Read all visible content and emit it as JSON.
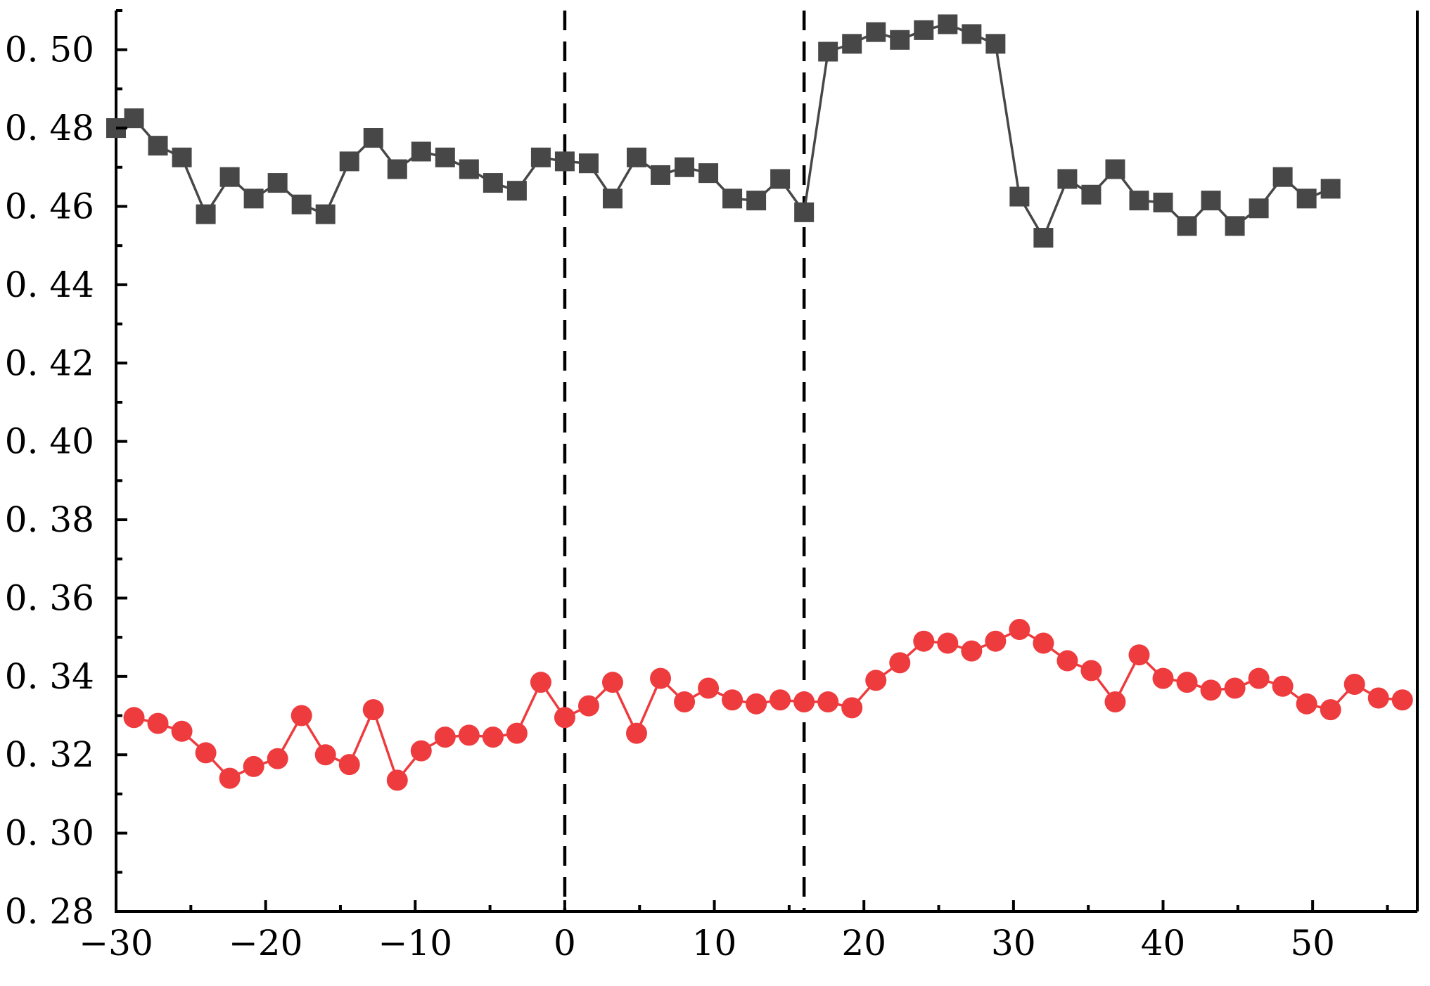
{
  "chart_data": {
    "type": "line",
    "title": "",
    "xlabel": "",
    "ylabel": "",
    "xlim": [
      -30,
      57
    ],
    "ylim": [
      0.28,
      0.51
    ],
    "x_ticks": [
      -30,
      -20,
      -10,
      0,
      10,
      20,
      30,
      40,
      50
    ],
    "x_tick_labels": [
      "−30",
      "−20",
      "−10",
      "0",
      "10",
      "20",
      "30",
      "40",
      "50"
    ],
    "y_ticks": [
      0.28,
      0.3,
      0.32,
      0.34,
      0.36,
      0.38,
      0.4,
      0.42,
      0.44,
      0.46,
      0.48,
      0.5
    ],
    "y_tick_labels": [
      "0. 28",
      "0. 30",
      "0. 32",
      "0. 34",
      "0. 36",
      "0. 38",
      "0. 40",
      "0. 42",
      "0. 44",
      "0. 46",
      "0. 48",
      "0. 50"
    ],
    "grid": false,
    "legend": false,
    "vertical_reference_lines": [
      0,
      16
    ],
    "series": [
      {
        "marker": "square",
        "color": "#474747",
        "x": [
          -30,
          -28.8,
          -27.2,
          -25.6,
          -24,
          -22.4,
          -20.8,
          -19.2,
          -17.6,
          -16,
          -14.4,
          -12.8,
          -11.2,
          -9.6,
          -8,
          -6.4,
          -4.8,
          -3.2,
          -1.6,
          0,
          1.6,
          3.2,
          4.8,
          6.4,
          8,
          9.6,
          11.2,
          12.8,
          14.4,
          16,
          17.6,
          19.2,
          20.8,
          22.4,
          24,
          25.6,
          27.2,
          28.8,
          30.4,
          32,
          33.6,
          35.2,
          36.8,
          38.4,
          40,
          41.6,
          43.2,
          44.8,
          46.4,
          48,
          49.6,
          51.2
        ],
        "values": [
          0.48,
          0.4825,
          0.4755,
          0.4725,
          0.458,
          0.4675,
          0.462,
          0.466,
          0.4605,
          0.458,
          0.4715,
          0.4775,
          0.4695,
          0.474,
          0.4725,
          0.4695,
          0.466,
          0.464,
          0.4725,
          0.4715,
          0.471,
          0.462,
          0.4725,
          0.468,
          0.47,
          0.4685,
          0.462,
          0.4615,
          0.467,
          0.4585,
          0.4995,
          0.5015,
          0.5045,
          0.5025,
          0.505,
          0.5065,
          0.504,
          0.5015,
          0.4625,
          0.452,
          0.467,
          0.463,
          0.4695,
          0.4615,
          0.461,
          0.455,
          0.4615,
          0.455,
          0.4595,
          0.4675,
          0.462,
          0.4645
        ]
      },
      {
        "marker": "circle",
        "color": "#ee3b3e",
        "x": [
          -28.8,
          -27.2,
          -25.6,
          -24,
          -22.4,
          -20.8,
          -19.2,
          -17.6,
          -16,
          -14.4,
          -12.8,
          -11.2,
          -9.6,
          -8,
          -6.4,
          -4.8,
          -3.2,
          -1.6,
          0,
          1.6,
          3.2,
          4.8,
          6.4,
          8,
          9.6,
          11.2,
          12.8,
          14.4,
          16,
          17.6,
          19.2,
          20.8,
          22.4,
          24,
          25.6,
          27.2,
          28.8,
          30.4,
          32,
          33.6,
          35.2,
          36.8,
          38.4,
          40,
          41.6,
          43.2,
          44.8,
          46.4,
          48,
          49.6,
          51.2,
          52.8,
          54.4,
          56
        ],
        "values": [
          0.3295,
          0.328,
          0.326,
          0.3205,
          0.314,
          0.317,
          0.319,
          0.33,
          0.32,
          0.3175,
          0.3315,
          0.3135,
          0.321,
          0.3245,
          0.325,
          0.3245,
          0.3255,
          0.3385,
          0.3295,
          0.3325,
          0.3385,
          0.3255,
          0.3395,
          0.3335,
          0.337,
          0.334,
          0.333,
          0.334,
          0.3335,
          0.3335,
          0.332,
          0.339,
          0.3435,
          0.349,
          0.3485,
          0.3465,
          0.349,
          0.352,
          0.3485,
          0.344,
          0.3415,
          0.3335,
          0.3455,
          0.3395,
          0.3385,
          0.3365,
          0.337,
          0.3395,
          0.3375,
          0.333,
          0.3315,
          0.338,
          0.3345,
          0.334
        ]
      }
    ]
  }
}
